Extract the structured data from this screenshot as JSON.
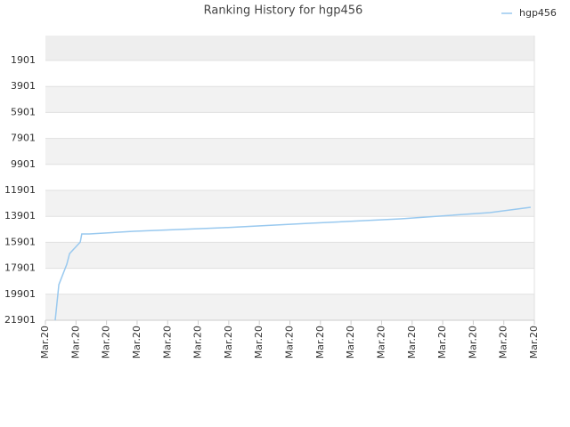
{
  "chart_data": {
    "type": "line",
    "title": "Ranking History for hgp456",
    "x": [
      0.32,
      0.35,
      0.44,
      0.7,
      0.79,
      1.14,
      1.19,
      1.43,
      2.89,
      5.8,
      8.71,
      11.63,
      14.54,
      15.88
    ],
    "series": [
      {
        "name": "hgp456",
        "color": "#99c9ef",
        "values": [
          21901,
          21220,
          19160,
          17590,
          16770,
          15880,
          15260,
          15260,
          15050,
          14780,
          14430,
          14090,
          13610,
          13200
        ]
      }
    ],
    "xlim": [
      0,
      16
    ],
    "xticks": [
      {
        "value": 0,
        "label": "Mar.20"
      },
      {
        "value": 1,
        "label": "Mar.20"
      },
      {
        "value": 2,
        "label": "Mar.20"
      },
      {
        "value": 3,
        "label": "Mar.20"
      },
      {
        "value": 4,
        "label": "Mar.20"
      },
      {
        "value": 5,
        "label": "Mar.20"
      },
      {
        "value": 6,
        "label": "Mar.20"
      },
      {
        "value": 7,
        "label": "Mar.20"
      },
      {
        "value": 8,
        "label": "Mar.20"
      },
      {
        "value": 9,
        "label": "Mar.20"
      },
      {
        "value": 10,
        "label": "Mar.20"
      },
      {
        "value": 11,
        "label": "Mar.20"
      },
      {
        "value": 12,
        "label": "Mar.20"
      },
      {
        "value": 13,
        "label": "Mar.20"
      },
      {
        "value": 14,
        "label": "Mar.20"
      },
      {
        "value": 15,
        "label": "Mar.20"
      },
      {
        "value": 16,
        "label": "Mar.20"
      }
    ],
    "ylim": [
      21901,
      -17
    ],
    "yticks": [
      1901,
      3901,
      5901,
      7901,
      9901,
      11901,
      13901,
      15901,
      17901,
      19901,
      21901
    ],
    "grid": true,
    "legend": "top-right"
  }
}
